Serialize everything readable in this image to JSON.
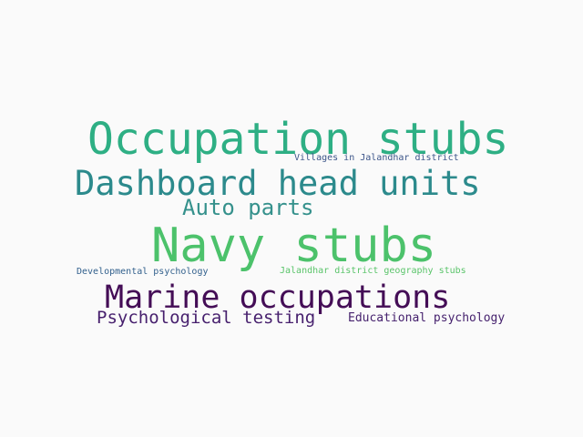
{
  "words": [
    {
      "text": "Occupation stubs",
      "color": "#2eaf84"
    },
    {
      "text": "Navy stubs",
      "color": "#4cc26b"
    },
    {
      "text": "Dashboard head units",
      "color": "#2c8a8c"
    },
    {
      "text": "Marine occupations",
      "color": "#440d56"
    },
    {
      "text": "Auto parts",
      "color": "#35918c"
    },
    {
      "text": "Psychological testing",
      "color": "#461f6d"
    },
    {
      "text": "Educational psychology",
      "color": "#46226e"
    },
    {
      "text": "Villages in Jalandhar district",
      "color": "#3c5589"
    },
    {
      "text": "Jalandhar district geography stubs",
      "color": "#5ac46a"
    },
    {
      "text": "Developmental psychology",
      "color": "#33618d"
    }
  ]
}
